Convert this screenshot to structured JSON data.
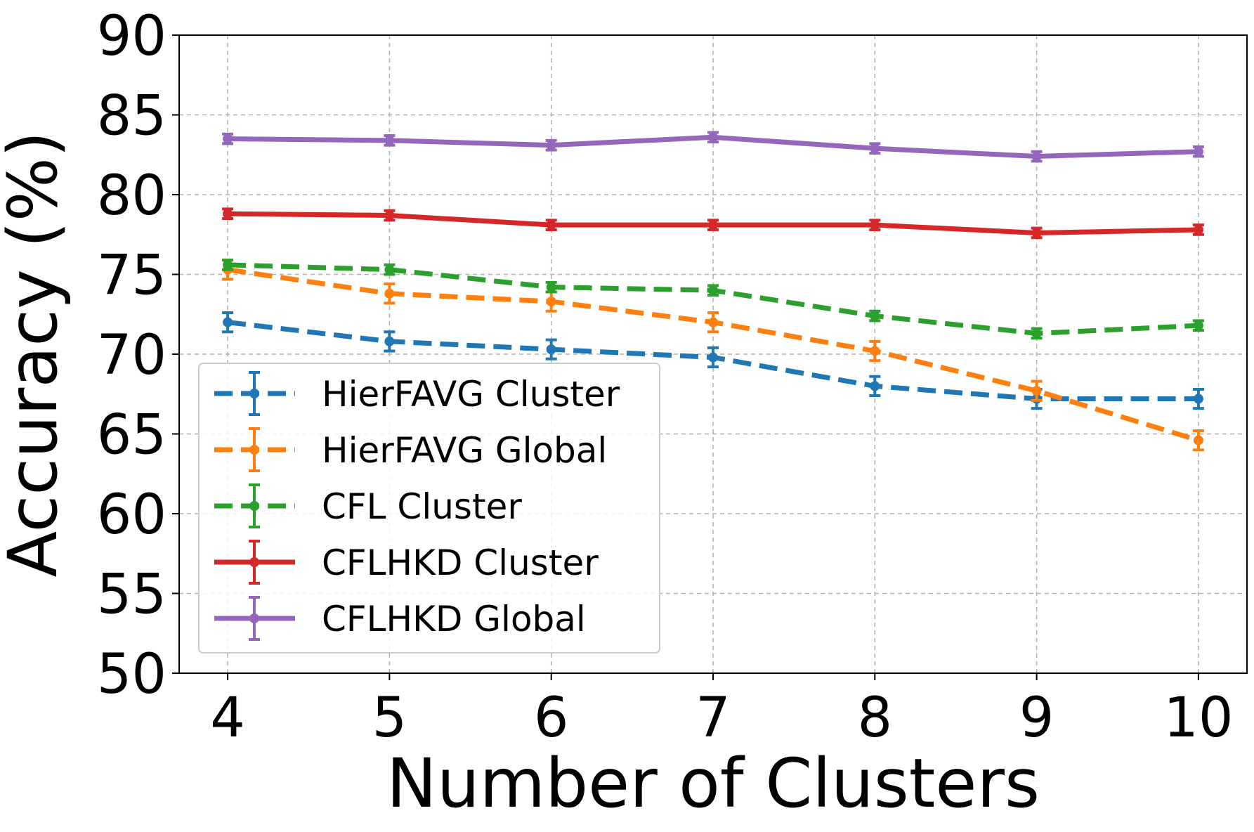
{
  "chart_data": {
    "type": "line",
    "xlabel": "Number of Clusters",
    "ylabel": "Accuracy (%)",
    "x": [
      4,
      5,
      6,
      7,
      8,
      9,
      10
    ],
    "xticks": [
      "4",
      "5",
      "6",
      "7",
      "8",
      "9",
      "10"
    ],
    "yticks": [
      "50",
      "55",
      "60",
      "65",
      "70",
      "75",
      "80",
      "85",
      "90"
    ],
    "xlim": [
      3.7,
      10.3
    ],
    "ylim": [
      50,
      90
    ],
    "grid": true,
    "legend_position": "lower-left",
    "series": [
      {
        "name": "HierFAVG Cluster",
        "color": "#1f77b4",
        "dashed": true,
        "values": [
          72.0,
          70.8,
          70.3,
          69.8,
          68.0,
          67.2,
          67.2
        ],
        "errors": [
          0.6,
          0.6,
          0.6,
          0.6,
          0.6,
          0.6,
          0.6
        ]
      },
      {
        "name": "HierFAVG Global",
        "color": "#ff7f0e",
        "dashed": true,
        "values": [
          75.3,
          73.8,
          73.3,
          72.0,
          70.2,
          67.7,
          64.6
        ],
        "errors": [
          0.6,
          0.6,
          0.6,
          0.6,
          0.6,
          0.6,
          0.6
        ]
      },
      {
        "name": "CFL Cluster",
        "color": "#2ca02c",
        "dashed": true,
        "values": [
          75.6,
          75.3,
          74.2,
          74.0,
          72.4,
          71.3,
          71.8
        ],
        "errors": [
          0.3,
          0.3,
          0.3,
          0.3,
          0.3,
          0.3,
          0.3
        ]
      },
      {
        "name": "CFLHKD Cluster",
        "color": "#d62728",
        "dashed": false,
        "values": [
          78.8,
          78.7,
          78.1,
          78.1,
          78.1,
          77.6,
          77.8
        ],
        "errors": [
          0.3,
          0.3,
          0.3,
          0.3,
          0.3,
          0.3,
          0.3
        ]
      },
      {
        "name": "CFLHKD Global",
        "color": "#9467bd",
        "dashed": false,
        "values": [
          83.5,
          83.4,
          83.1,
          83.6,
          82.9,
          82.4,
          82.7
        ],
        "errors": [
          0.3,
          0.3,
          0.3,
          0.3,
          0.3,
          0.3,
          0.3
        ]
      }
    ]
  }
}
